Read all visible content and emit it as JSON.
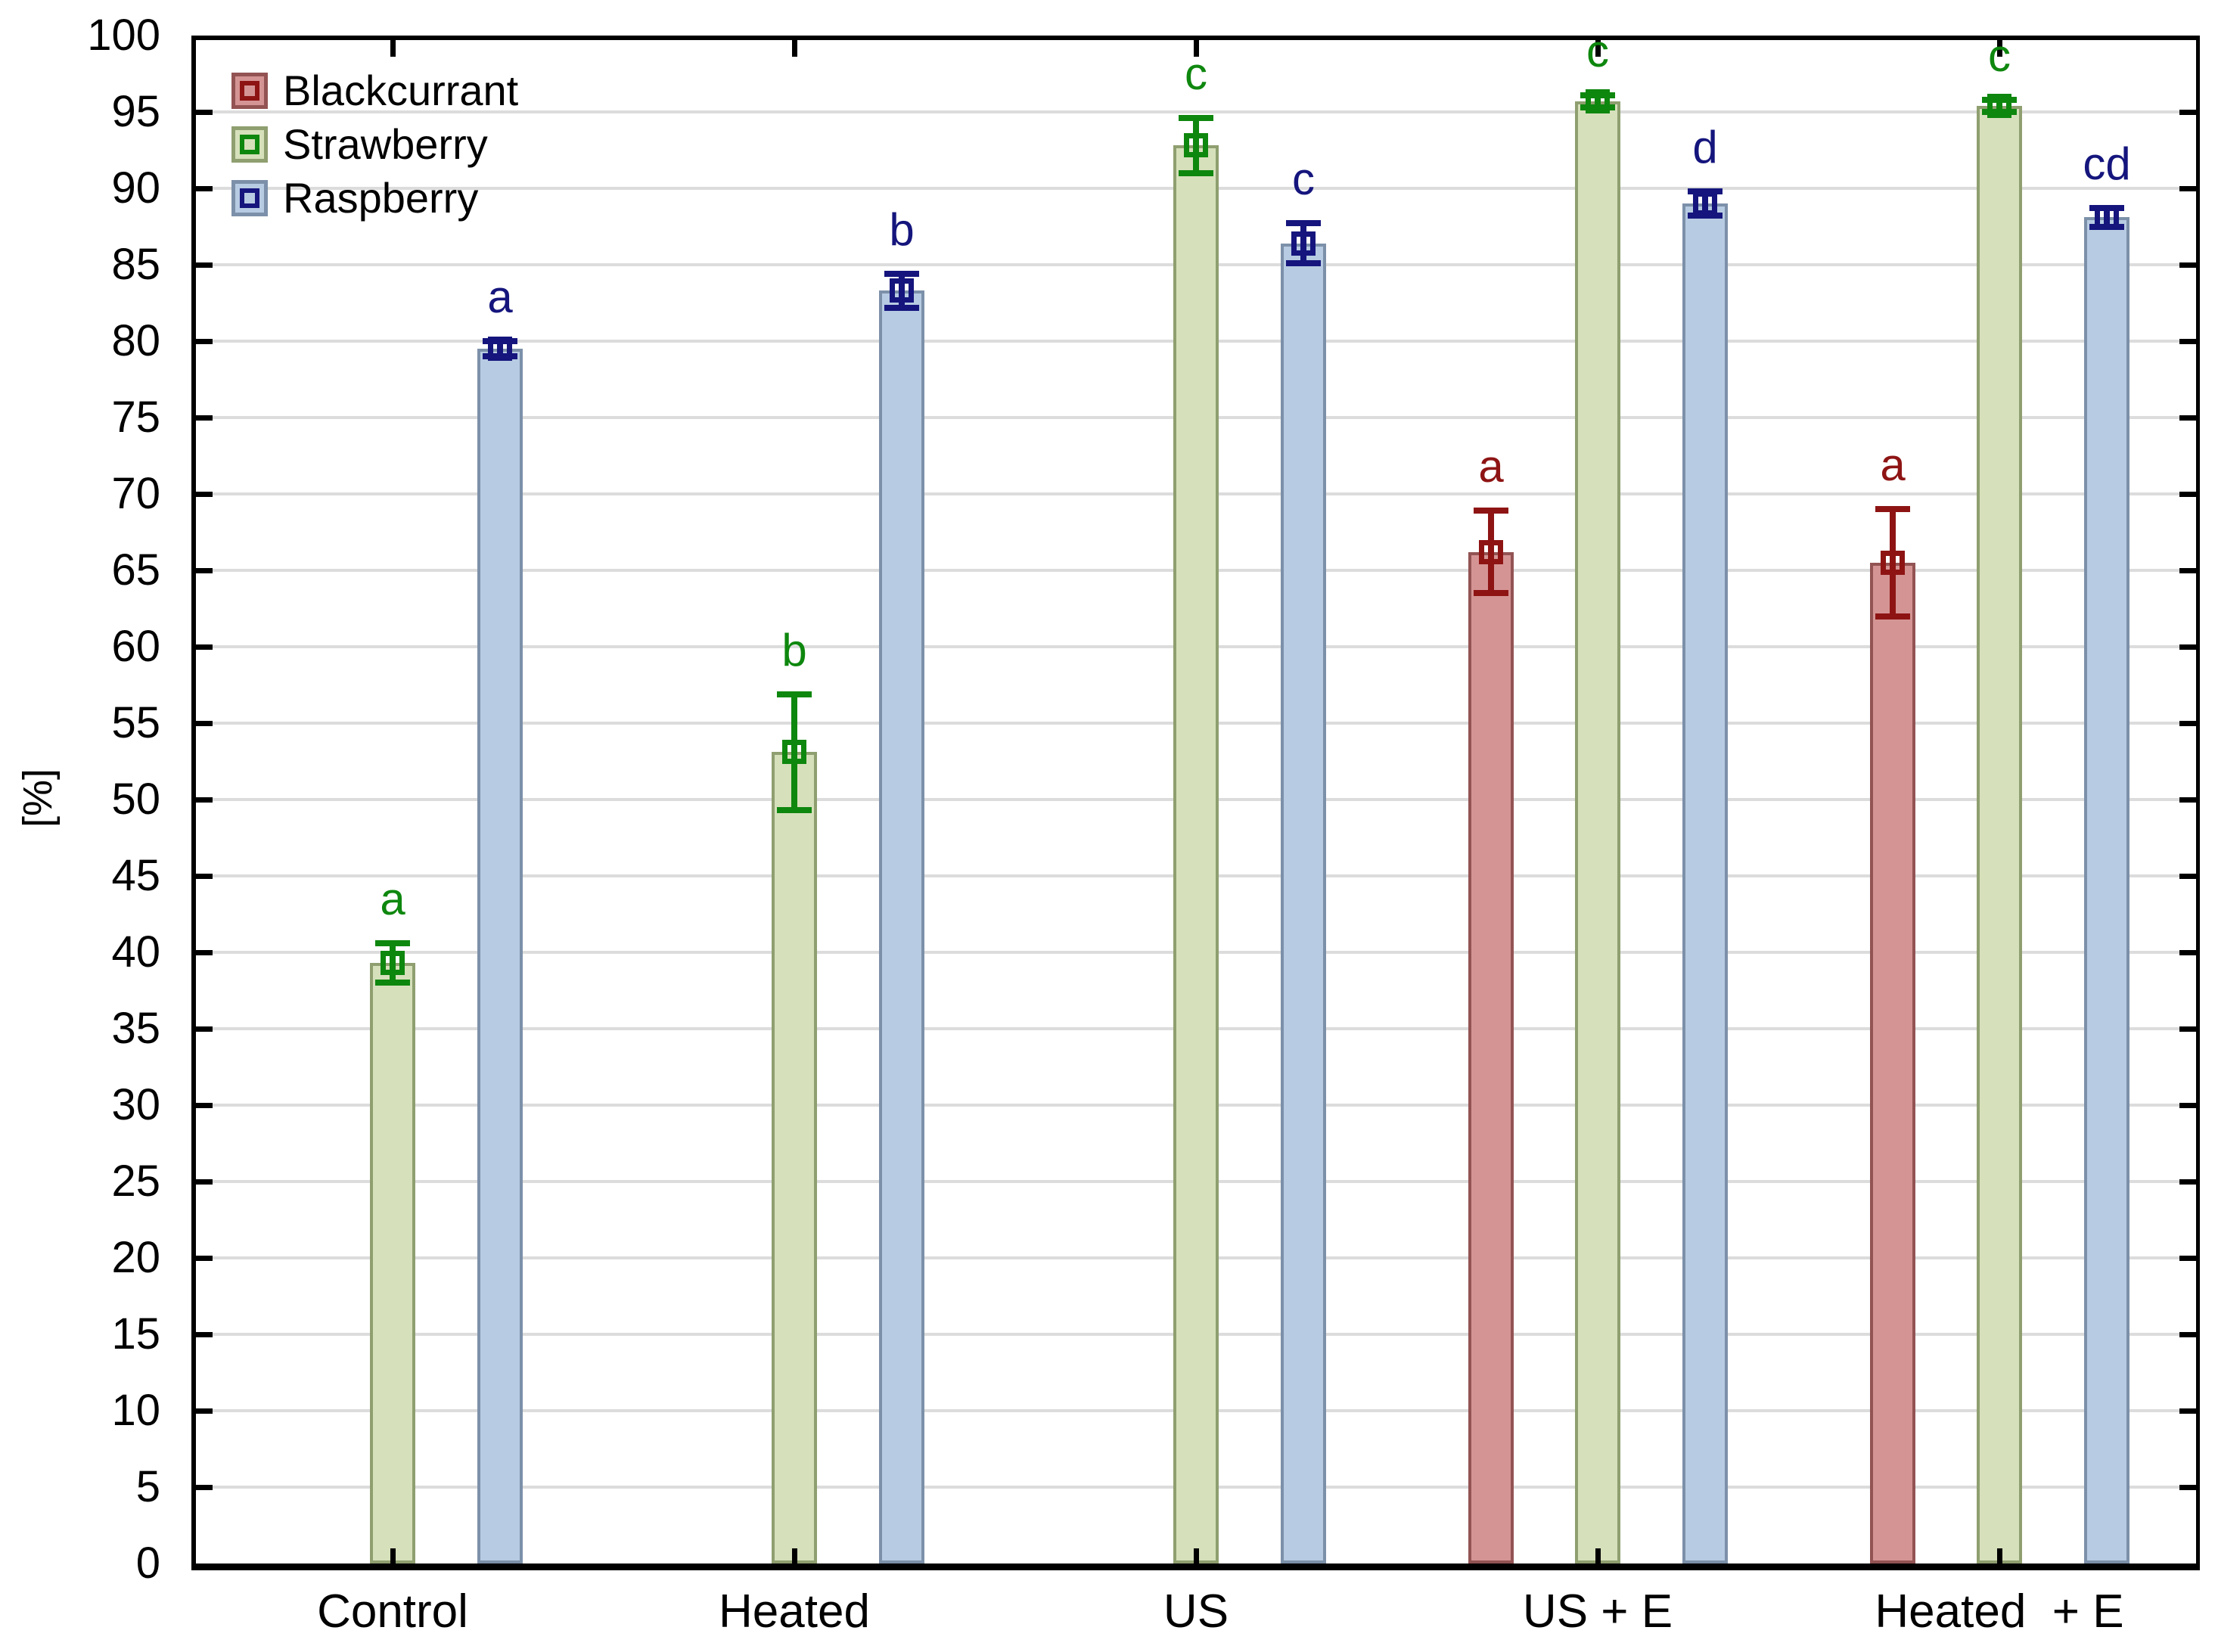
{
  "chart_data": {
    "type": "bar",
    "title": "",
    "ylabel": "[%]",
    "ylim": [
      0,
      100
    ],
    "ytick_step": 5,
    "yticks": [
      0,
      5,
      10,
      15,
      20,
      25,
      30,
      35,
      40,
      45,
      50,
      55,
      60,
      65,
      70,
      75,
      80,
      85,
      90,
      95,
      100
    ],
    "grid": "horizontal gridlines every 5, light gray",
    "legend_position": "top-left inside plot",
    "categories": [
      "Control",
      "Heated",
      "US",
      "US + E",
      "Heated  + E"
    ],
    "series": [
      {
        "name": "Blackcurrant",
        "fill": "#d59494",
        "edge": "#935353",
        "accent": "#8e1414",
        "values": [
          null,
          null,
          null,
          66.2,
          65.5
        ],
        "errors": [
          null,
          null,
          null,
          2.7,
          3.5
        ],
        "letters": [
          "",
          "",
          "",
          "a",
          "a"
        ]
      },
      {
        "name": "Strawberry",
        "fill": "#d6e0bb",
        "edge": "#8f9f70",
        "accent": "#0e870e",
        "values": [
          39.3,
          53.1,
          92.8,
          95.7,
          95.4
        ],
        "errors": [
          1.3,
          3.8,
          1.8,
          0.4,
          0.4
        ],
        "letters": [
          "a",
          "b",
          "c",
          "c",
          "c"
        ]
      },
      {
        "name": "Raspberry",
        "fill": "#b7cbe2",
        "edge": "#7c90a9",
        "accent": "#15157d",
        "values": [
          79.5,
          83.3,
          86.4,
          89.0,
          88.1
        ],
        "errors": [
          0.5,
          1.1,
          1.3,
          0.8,
          0.6
        ],
        "letters": [
          "a",
          "b",
          "c",
          "d",
          "cd"
        ]
      }
    ],
    "colors": {
      "gridline": "#dcdcdc",
      "axis": "#000000",
      "background": "#ffffff"
    }
  }
}
